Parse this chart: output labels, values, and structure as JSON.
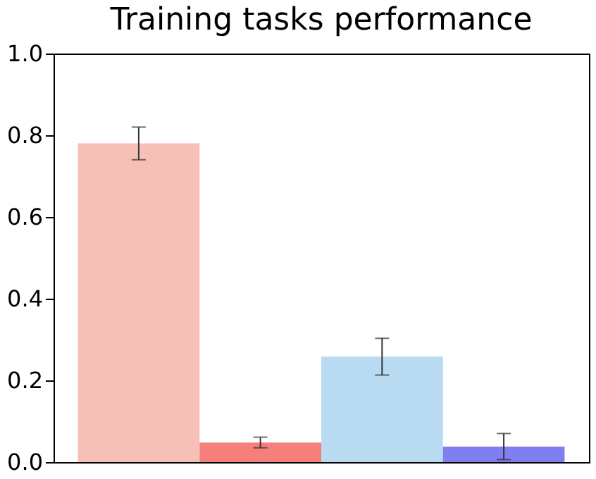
{
  "chart_data": {
    "type": "bar",
    "title": "Training tasks performance",
    "categories": [
      null,
      null,
      null,
      null
    ],
    "values": [
      0.78,
      0.048,
      0.258,
      0.038
    ],
    "errors": [
      0.04,
      0.013,
      0.045,
      0.032
    ],
    "colors": [
      "#f6c0b6",
      "#f47f7b",
      "#b9dbf2",
      "#7f7ff2"
    ],
    "ylim": [
      0,
      1
    ],
    "yticks": [
      {
        "value": 0,
        "label": "0.0"
      },
      {
        "value": 0.2,
        "label": "0.2"
      },
      {
        "value": 0.4,
        "label": "0.4"
      },
      {
        "value": 0.6,
        "label": "0.6"
      },
      {
        "value": 0.8,
        "label": "0.8"
      },
      {
        "value": 1,
        "label": "1.0"
      }
    ],
    "grid": false
  }
}
